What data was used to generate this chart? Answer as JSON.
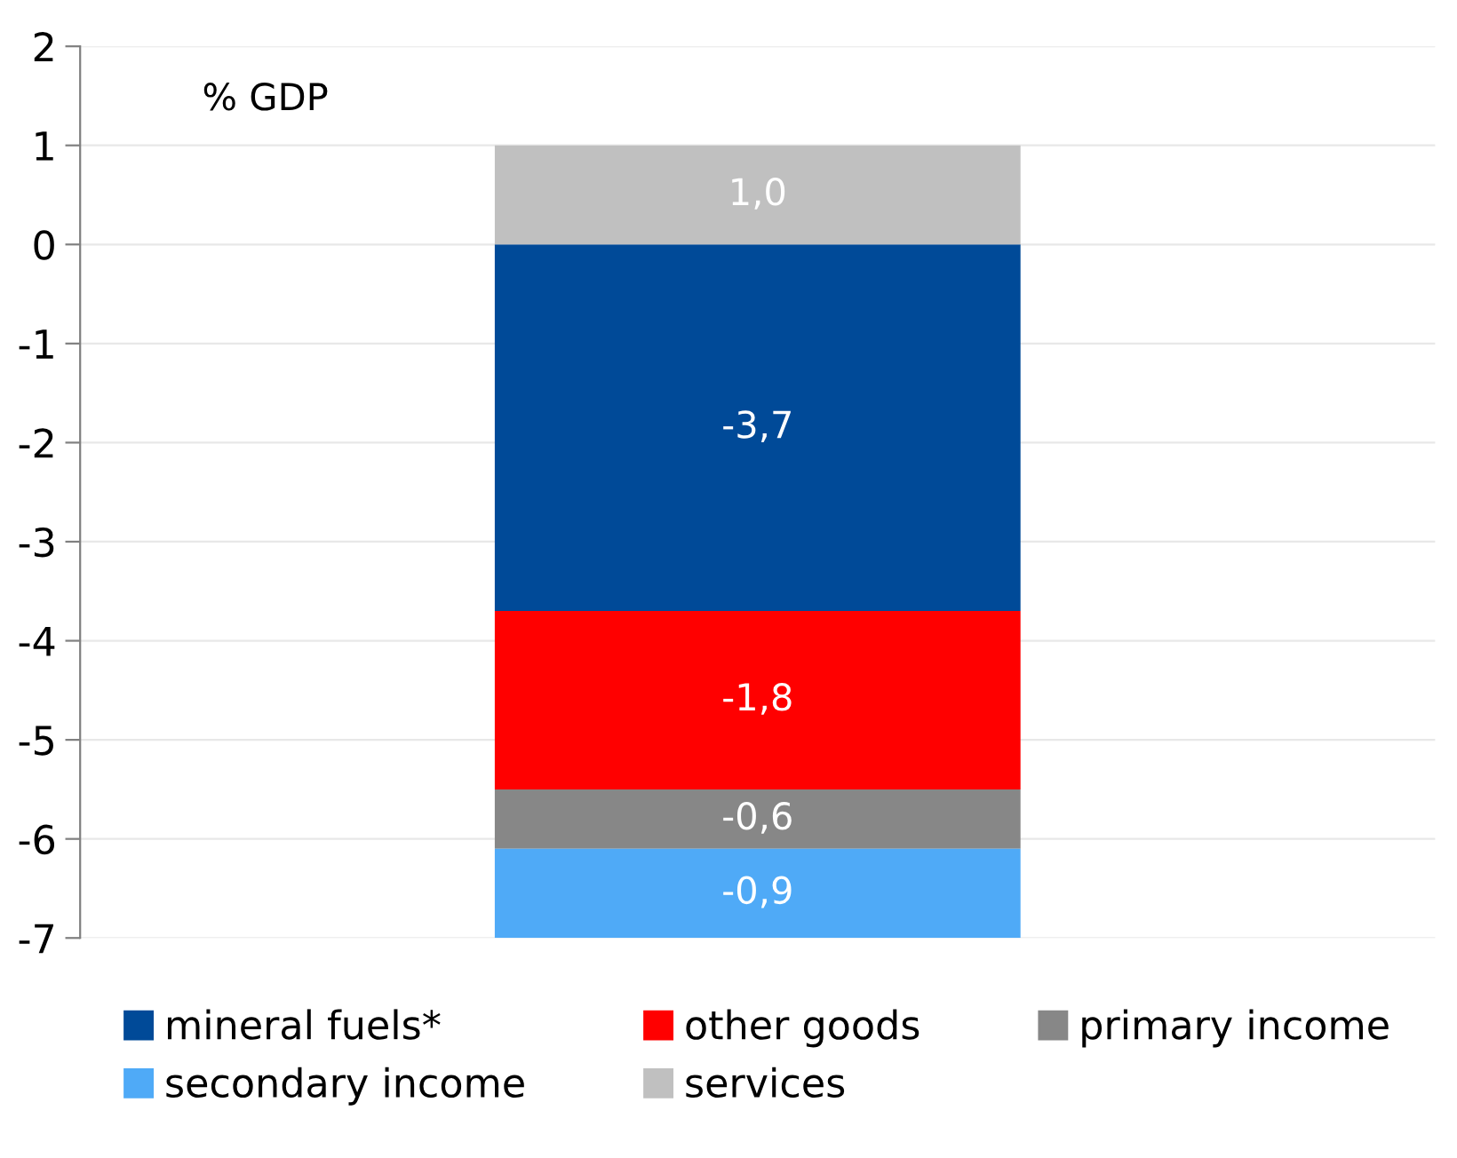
{
  "chart_data": {
    "type": "bar",
    "stacked": true,
    "ylabel": "% GDP",
    "categories": [
      null
    ],
    "series": [
      {
        "name": "mineral fuels*",
        "color": "#004a98",
        "values": [
          -3.7
        ],
        "value_labels": [
          "-3,7"
        ]
      },
      {
        "name": "other goods",
        "color": "#ff0000",
        "values": [
          -1.8
        ],
        "value_labels": [
          "-1,8"
        ]
      },
      {
        "name": "primary income",
        "color": "#878787",
        "values": [
          -0.6
        ],
        "value_labels": [
          "-0,6"
        ]
      },
      {
        "name": "secondary income",
        "color": "#4faaf7",
        "values": [
          -0.9
        ],
        "value_labels": [
          "-0,9"
        ]
      },
      {
        "name": "services",
        "color": "#c0c0c0",
        "values": [
          1.0
        ],
        "value_labels": [
          "1,0"
        ]
      }
    ],
    "ylim": [
      -7,
      2
    ],
    "yticks": [
      -7,
      -6,
      -5,
      -4,
      -3,
      -2,
      -1,
      0,
      1,
      2
    ],
    "grid": "y",
    "legend": "bottom"
  }
}
